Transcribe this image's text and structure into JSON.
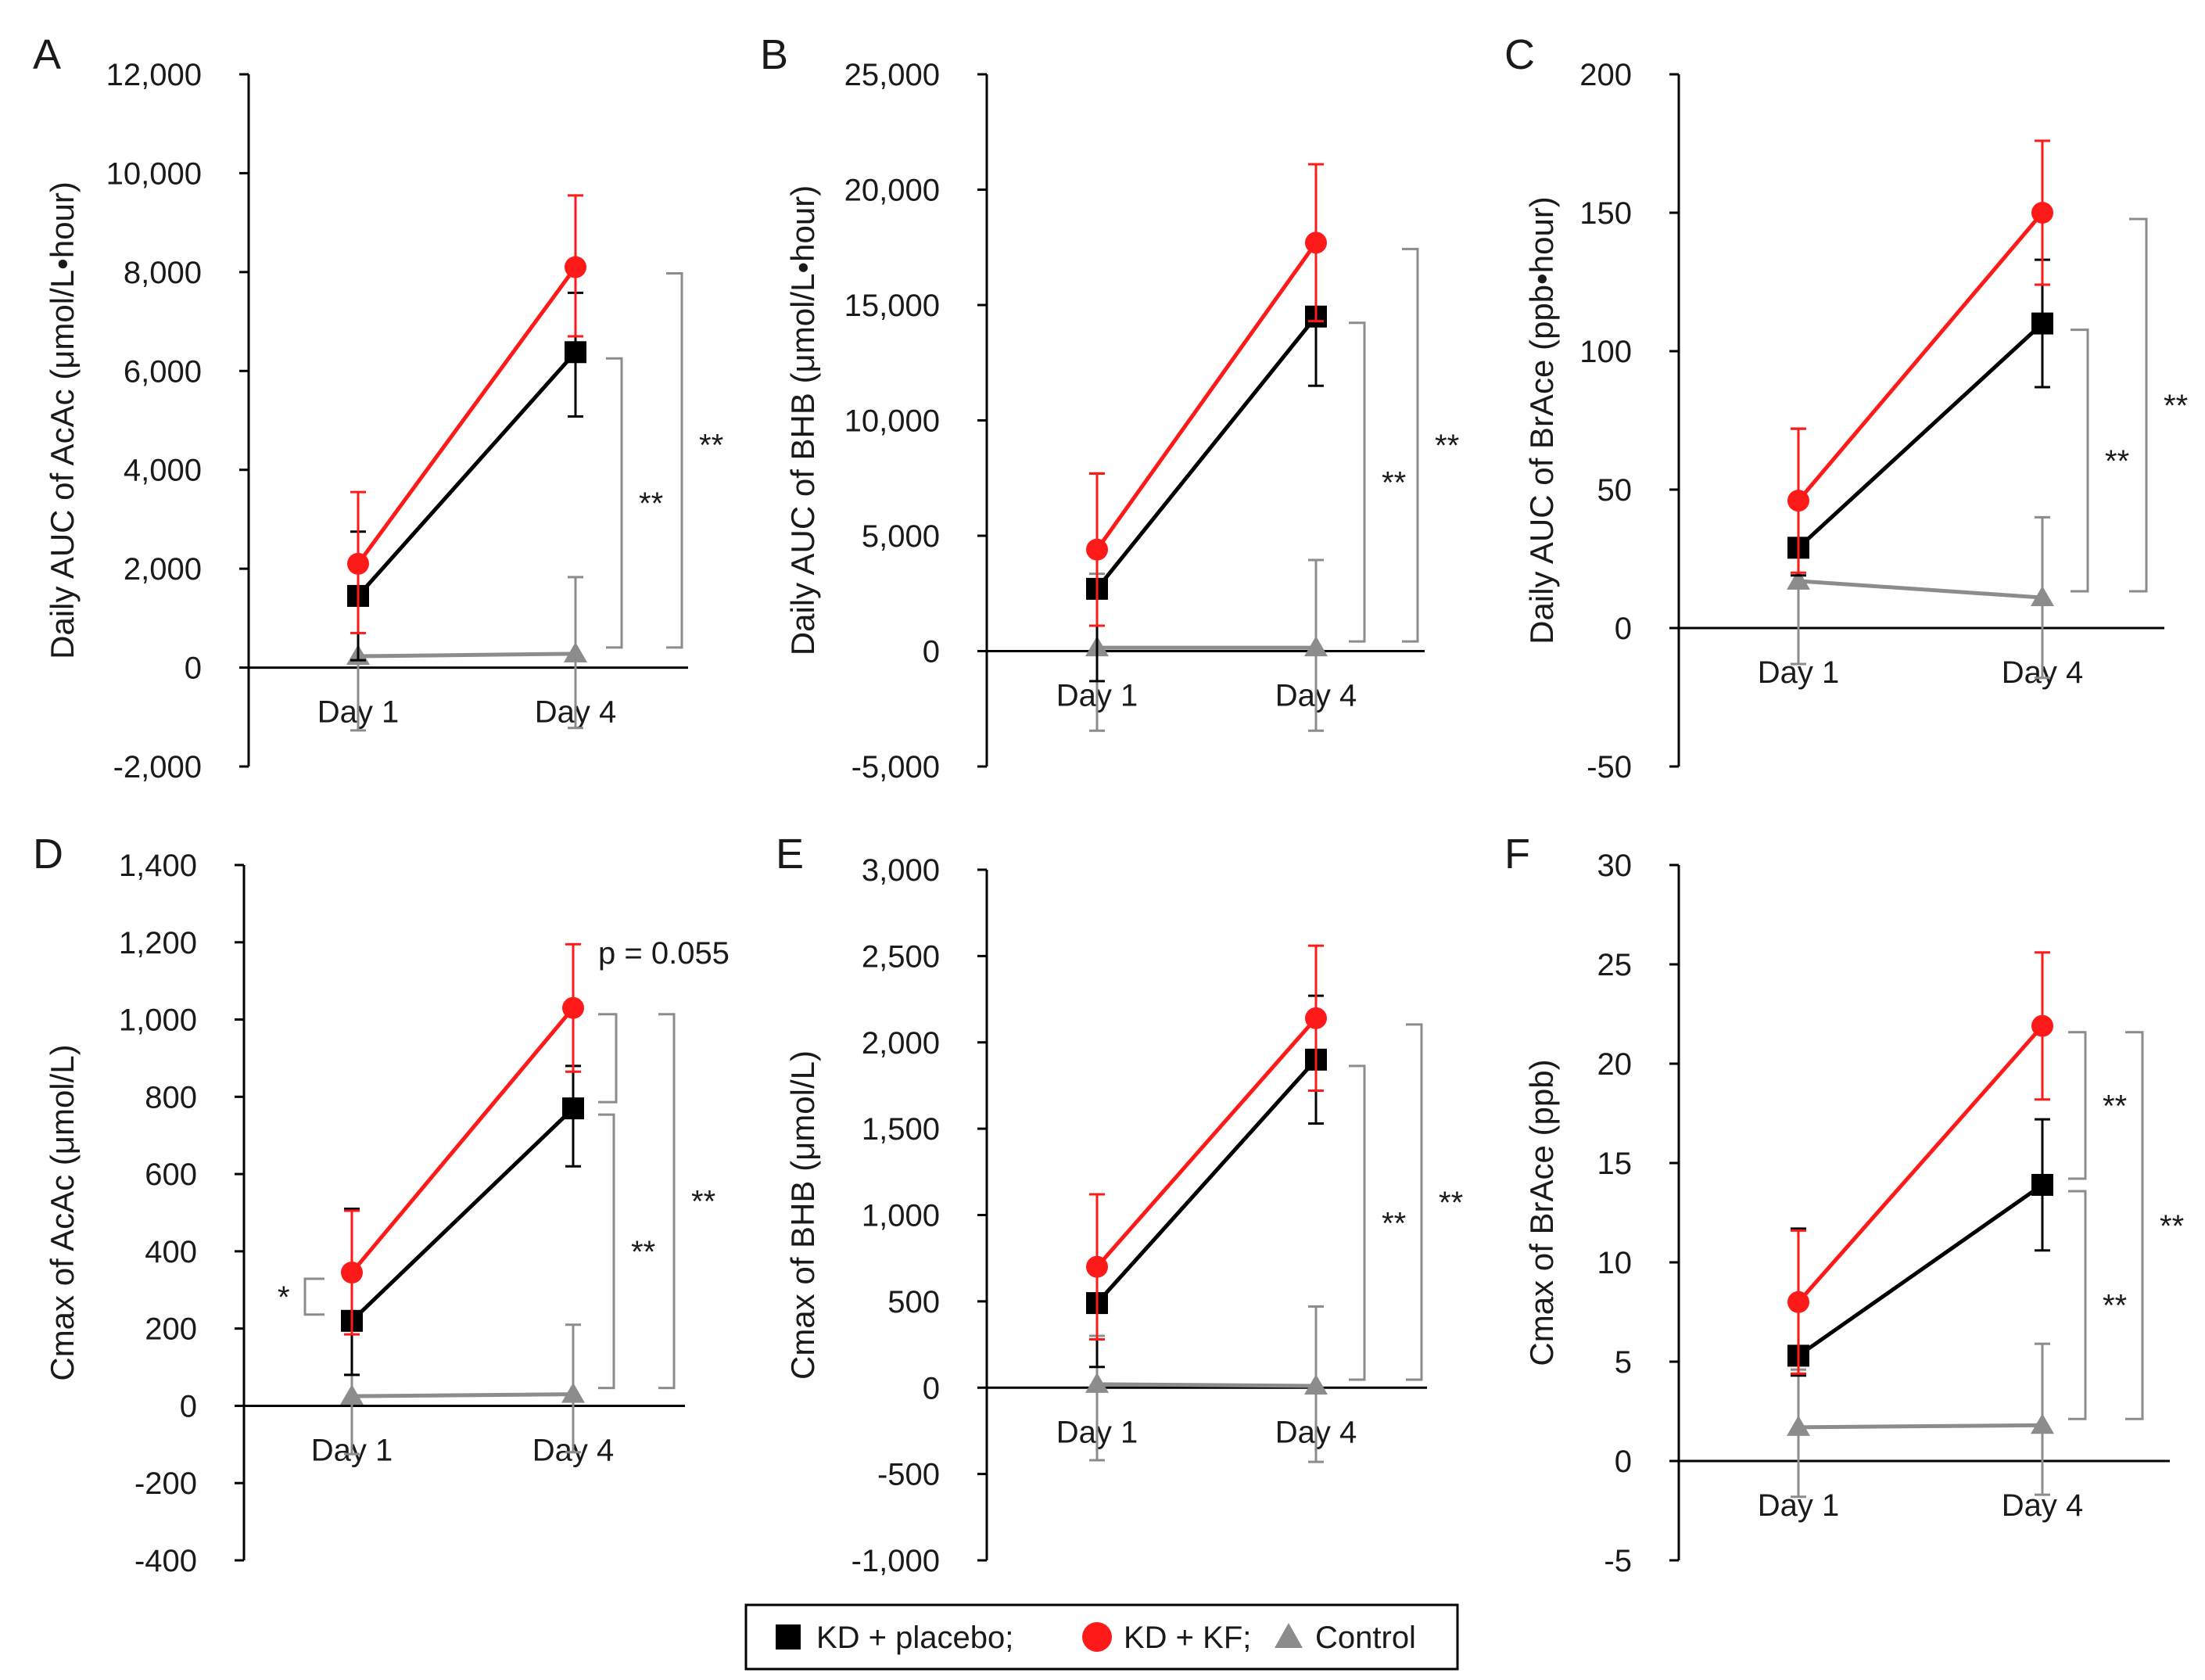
{
  "figure": {
    "legend": [
      {
        "label": "KD + placebo;",
        "marker": "square",
        "color": "#000000"
      },
      {
        "label": "KD + KF;",
        "marker": "circle",
        "color": "#ff1a1a"
      },
      {
        "label": "Control",
        "marker": "triangle",
        "color": "#8c8c8c"
      }
    ]
  },
  "chart_data": [
    {
      "panel": "A",
      "type": "line",
      "ylabel": "Daily AUC of AcAc (μmol/L•hour)",
      "categories": [
        "Day 1",
        "Day 4"
      ],
      "ylim": [
        -2000,
        12000
      ],
      "yticks": [
        "-2,000",
        "0",
        "2,000",
        "4,000",
        "6,000",
        "8,000",
        "10,000",
        "12,000"
      ],
      "series": [
        {
          "name": "KD + placebo",
          "values": [
            1450,
            6380
          ],
          "err_hi": [
            1300,
            1200
          ],
          "err_lo": [
            1300,
            1300
          ]
        },
        {
          "name": "KD + KF",
          "values": [
            2100,
            8100
          ],
          "err_hi": [
            1450,
            1450
          ],
          "err_lo": [
            1400,
            1400
          ]
        },
        {
          "name": "Control",
          "values": [
            230,
            280
          ],
          "err_hi": [
            1200,
            1550
          ],
          "err_lo": [
            1500,
            1500
          ]
        }
      ],
      "significance": [
        {
          "label": "**",
          "between": [
            "KD + KF",
            "Control"
          ],
          "day": "Day 4"
        },
        {
          "label": "**",
          "between": [
            "KD + placebo",
            "Control"
          ],
          "day": "Day 4"
        }
      ]
    },
    {
      "panel": "B",
      "type": "line",
      "ylabel": "Daily AUC of BHB (μmol/L•hour)",
      "categories": [
        "Day 1",
        "Day 4"
      ],
      "ylim": [
        -5000,
        25000
      ],
      "yticks": [
        "-5,000",
        "0",
        "5,000",
        "10,000",
        "15,000",
        "20,000",
        "25,000"
      ],
      "series": [
        {
          "name": "KD + placebo",
          "values": [
            2700,
            14500
          ],
          "err_hi": [
            5000,
            3000
          ],
          "err_lo": [
            4000,
            3000
          ]
        },
        {
          "name": "KD + KF",
          "values": [
            4400,
            17700
          ],
          "err_hi": [
            3300,
            3400
          ],
          "err_lo": [
            3300,
            3400
          ]
        },
        {
          "name": "Control",
          "values": [
            150,
            150
          ],
          "err_hi": [
            3200,
            3800
          ],
          "err_lo": [
            3600,
            3600
          ]
        }
      ],
      "significance": [
        {
          "label": "**",
          "between": [
            "KD + KF",
            "Control"
          ],
          "day": "Day 4"
        },
        {
          "label": "**",
          "between": [
            "KD + placebo",
            "Control"
          ],
          "day": "Day 4"
        }
      ]
    },
    {
      "panel": "C",
      "type": "line",
      "ylabel": "Daily AUC of BrAce (ppb•hour)",
      "categories": [
        "Day 1",
        "Day 4"
      ],
      "ylim": [
        -50,
        200
      ],
      "yticks": [
        "-50",
        "0",
        "50",
        "100",
        "150",
        "200"
      ],
      "series": [
        {
          "name": "KD + placebo",
          "values": [
            29,
            110
          ],
          "err_hi": [
            43,
            23
          ],
          "err_lo": [
            10,
            23
          ]
        },
        {
          "name": "KD + KF",
          "values": [
            46,
            150
          ],
          "err_hi": [
            26,
            26
          ],
          "err_lo": [
            26,
            26
          ]
        },
        {
          "name": "Control",
          "values": [
            17,
            11
          ],
          "err_hi": [
            10,
            29
          ],
          "err_lo": [
            30,
            29
          ]
        }
      ],
      "significance": [
        {
          "label": "**",
          "between": [
            "KD + KF",
            "Control"
          ],
          "day": "Day 4"
        },
        {
          "label": "**",
          "between": [
            "KD + placebo",
            "Control"
          ],
          "day": "Day 4"
        }
      ]
    },
    {
      "panel": "D",
      "type": "line",
      "ylabel": "Cmax of AcAc (μmol/L)",
      "categories": [
        "Day 1",
        "Day 4"
      ],
      "ylim": [
        -400,
        1400
      ],
      "yticks": [
        "-400",
        "-200",
        "0",
        "200",
        "400",
        "600",
        "800",
        "1,000",
        "1,200",
        "1,400"
      ],
      "series": [
        {
          "name": "KD + placebo",
          "values": [
            220,
            770
          ],
          "err_hi": [
            290,
            110
          ],
          "err_lo": [
            140,
            150
          ]
        },
        {
          "name": "KD + KF",
          "values": [
            345,
            1030
          ],
          "err_hi": [
            160,
            165
          ],
          "err_lo": [
            160,
            165
          ]
        },
        {
          "name": "Control",
          "values": [
            25,
            30
          ],
          "err_hi": [
            55,
            180
          ],
          "err_lo": [
            150,
            150
          ]
        }
      ],
      "significance": [
        {
          "label": "*",
          "between": [
            "KD + KF",
            "KD + placebo"
          ],
          "day": "Day 1"
        },
        {
          "label": "p = 0.055",
          "between": [
            "KD + KF",
            "KD + placebo"
          ],
          "day": "Day 4"
        },
        {
          "label": "**",
          "between": [
            "KD + KF",
            "Control"
          ],
          "day": "Day 4"
        },
        {
          "label": "**",
          "between": [
            "KD + placebo",
            "Control"
          ],
          "day": "Day 4"
        }
      ]
    },
    {
      "panel": "E",
      "type": "line",
      "ylabel": "Cmax of BHB (μmol/L)",
      "categories": [
        "Day 1",
        "Day 4"
      ],
      "ylim": [
        -1000,
        3000
      ],
      "yticks": [
        "-1,000",
        "-500",
        "0",
        "500",
        "1,000",
        "1,500",
        "2,000",
        "2,500",
        "3,000"
      ],
      "series": [
        {
          "name": "KD + placebo",
          "values": [
            490,
            1900
          ],
          "err_hi": [
            630,
            370
          ],
          "err_lo": [
            370,
            370
          ]
        },
        {
          "name": "KD + KF",
          "values": [
            700,
            2140
          ],
          "err_hi": [
            420,
            420
          ],
          "err_lo": [
            420,
            420
          ]
        },
        {
          "name": "Control",
          "values": [
            20,
            10
          ],
          "err_hi": [
            280,
            460
          ],
          "err_lo": [
            440,
            440
          ]
        }
      ],
      "significance": [
        {
          "label": "**",
          "between": [
            "KD + KF",
            "Control"
          ],
          "day": "Day 4"
        },
        {
          "label": "**",
          "between": [
            "KD + placebo",
            "Control"
          ],
          "day": "Day 4"
        }
      ]
    },
    {
      "panel": "F",
      "type": "line",
      "ylabel": "Cmax of BrAce (ppb)",
      "categories": [
        "Day 1",
        "Day 4"
      ],
      "ylim": [
        -5,
        30
      ],
      "yticks": [
        "-5",
        "0",
        "5",
        "10",
        "15",
        "20",
        "25",
        "30"
      ],
      "series": [
        {
          "name": "KD + placebo",
          "values": [
            5.3,
            13.9
          ],
          "err_hi": [
            6.4,
            3.3
          ],
          "err_lo": [
            1.0,
            3.3
          ]
        },
        {
          "name": "KD + KF",
          "values": [
            8.0,
            21.9
          ],
          "err_hi": [
            3.6,
            3.7
          ],
          "err_lo": [
            3.6,
            3.7
          ]
        },
        {
          "name": "Control",
          "values": [
            1.7,
            1.8
          ],
          "err_hi": [
            2.9,
            4.1
          ],
          "err_lo": [
            3.5,
            3.5
          ]
        }
      ],
      "significance": [
        {
          "label": "**",
          "between": [
            "KD + KF",
            "KD + placebo"
          ],
          "day": "Day 4"
        },
        {
          "label": "**",
          "between": [
            "KD + placebo",
            "Control"
          ],
          "day": "Day 4"
        },
        {
          "label": "**",
          "between": [
            "KD + KF",
            "Control"
          ],
          "day": "Day 4"
        }
      ]
    }
  ]
}
